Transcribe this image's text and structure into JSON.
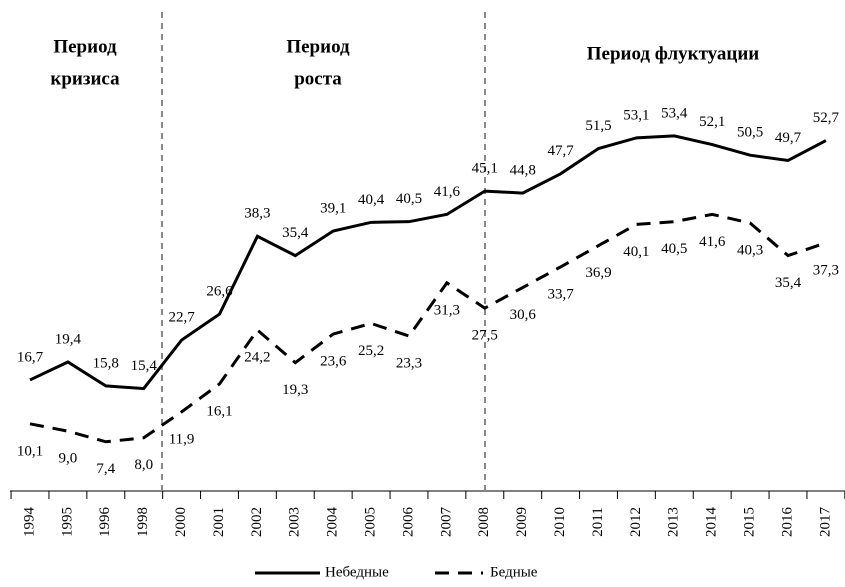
{
  "chart_data": {
    "type": "line",
    "categories": [
      "1994",
      "1995",
      "1996",
      "1998",
      "2000",
      "2001",
      "2002",
      "2003",
      "2004",
      "2005",
      "2006",
      "2007",
      "2008",
      "2009",
      "2010",
      "2011",
      "2012",
      "2013",
      "2014",
      "2015",
      "2016",
      "2017"
    ],
    "series": [
      {
        "name": "Небедные",
        "color": "#000000",
        "dash": false,
        "values": [
          16.7,
          19.4,
          15.8,
          15.4,
          22.7,
          26.6,
          38.3,
          35.4,
          39.1,
          40.4,
          40.5,
          41.6,
          45.1,
          44.8,
          47.7,
          51.5,
          53.1,
          53.4,
          52.1,
          50.5,
          49.7,
          52.7
        ],
        "value_labels": [
          "16,7",
          "19,4",
          "15,8",
          "15,4",
          "22,7",
          "26,6",
          "38,3",
          "35,4",
          "39,1",
          "40,4",
          "40,5",
          "41,6",
          "45,1",
          "44,8",
          "47,7",
          "51,5",
          "53,1",
          "53,4",
          "52,1",
          "50,5",
          "49,7",
          "52,7"
        ]
      },
      {
        "name": "Бедные",
        "color": "#000000",
        "dash": true,
        "values": [
          10.1,
          9.0,
          7.4,
          8.0,
          11.9,
          16.1,
          24.2,
          19.3,
          23.6,
          25.2,
          23.3,
          31.3,
          27.5,
          30.6,
          33.7,
          36.9,
          40.1,
          40.5,
          41.6,
          40.3,
          35.4,
          37.3
        ],
        "value_labels": [
          "10,1",
          "9,0",
          "7,4",
          "8,0",
          "11,9",
          "16,1",
          "24,2",
          "19,3",
          "23,6",
          "25,2",
          "23,3",
          "31,3",
          "27,5",
          "30,6",
          "33,7",
          "36,9",
          "40,1",
          "40,5",
          "41,6",
          "40,3",
          "35,4",
          "37,3"
        ]
      }
    ],
    "annotations": [
      "Период",
      "кризиса",
      "Период",
      "роста",
      "Период флуктуации"
    ]
  }
}
